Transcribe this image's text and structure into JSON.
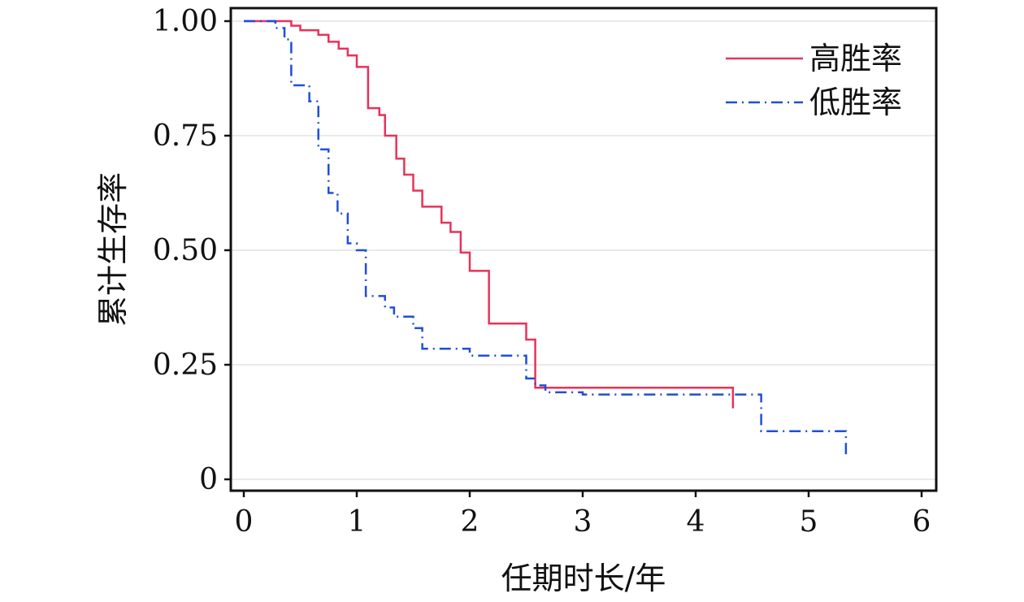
{
  "chart_data": {
    "type": "line",
    "subtype": "step",
    "title": "",
    "xlabel": "任期时长/年",
    "ylabel": "累计生存率",
    "xlim": [
      0,
      6
    ],
    "ylim": [
      0,
      1
    ],
    "x_ticks": [
      0,
      1,
      2,
      3,
      4,
      5,
      6
    ],
    "x_tick_labels": [
      "0",
      "1",
      "2",
      "3",
      "4",
      "5",
      "6"
    ],
    "y_ticks": [
      0,
      0.25,
      0.5,
      0.75,
      1.0
    ],
    "y_tick_labels": [
      "0",
      "0.25",
      "0.50",
      "0.75",
      "1.00"
    ],
    "grid": "horizontal",
    "legend_position": "top-right",
    "series": [
      {
        "name": "高胜率",
        "color": "#e8325a",
        "line_style": "solid",
        "x": [
          0,
          0.42,
          0.5,
          0.66,
          0.75,
          0.84,
          0.92,
          1.0,
          1.1,
          1.2,
          1.25,
          1.35,
          1.42,
          1.5,
          1.58,
          1.75,
          1.83,
          1.92,
          2.0,
          2.17,
          2.5,
          2.58,
          4.33
        ],
        "y": [
          1.0,
          0.99,
          0.98,
          0.97,
          0.955,
          0.94,
          0.925,
          0.9,
          0.81,
          0.795,
          0.75,
          0.7,
          0.665,
          0.63,
          0.595,
          0.56,
          0.54,
          0.495,
          0.455,
          0.34,
          0.305,
          0.2,
          0.155
        ]
      },
      {
        "name": "低胜率",
        "color": "#1f4fd8",
        "line_style": "dash-dot",
        "x": [
          0,
          0.28,
          0.36,
          0.42,
          0.58,
          0.66,
          0.75,
          0.83,
          0.92,
          1.0,
          1.08,
          1.25,
          1.33,
          1.5,
          1.58,
          2.0,
          2.5,
          2.58,
          2.67,
          3.0,
          4.58,
          5.33
        ],
        "y": [
          1.0,
          0.985,
          0.96,
          0.86,
          0.825,
          0.72,
          0.625,
          0.58,
          0.515,
          0.5,
          0.4,
          0.375,
          0.355,
          0.33,
          0.285,
          0.27,
          0.22,
          0.205,
          0.19,
          0.185,
          0.105,
          0.05
        ]
      }
    ]
  }
}
